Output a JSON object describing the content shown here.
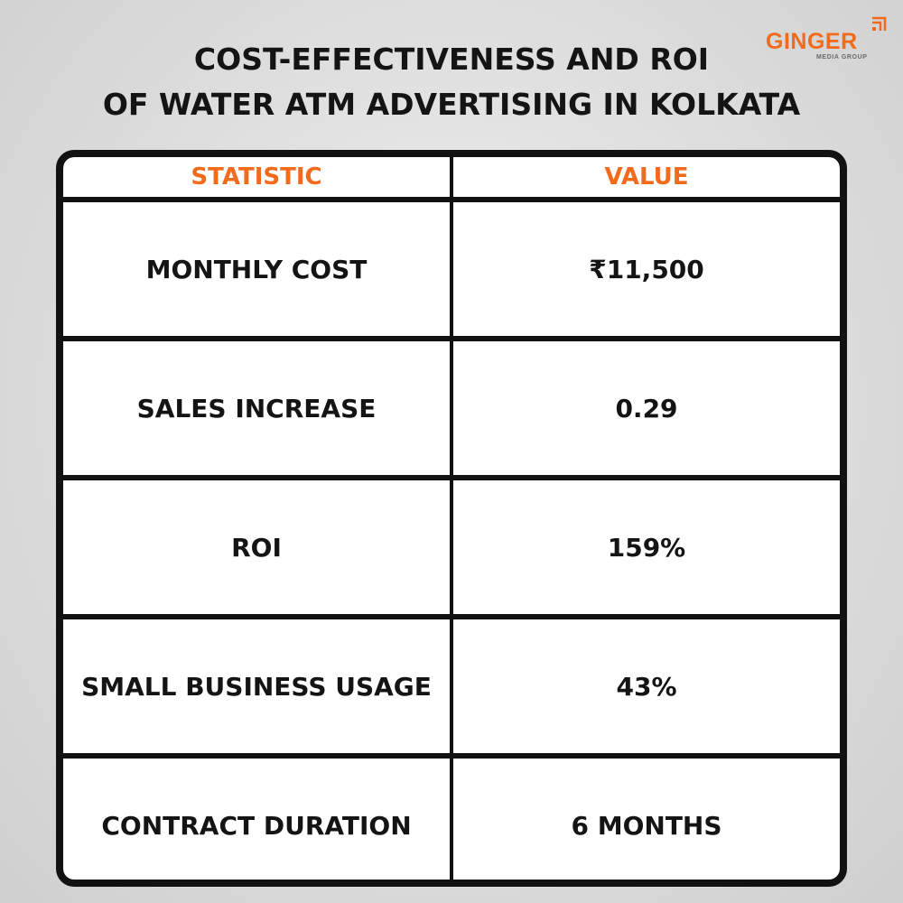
{
  "title": {
    "line1": "COST-EFFECTIVENESS AND ROI",
    "line2": "OF WATER ATM ADVERTISING IN KOLKATA"
  },
  "logo": {
    "name": "GINGER",
    "tagline": "MEDIA GROUP",
    "icon": "ginger-logo-icon"
  },
  "colors": {
    "accent": "#f26b1d",
    "text": "#141414",
    "border": "#121212"
  },
  "table": {
    "headers": [
      "STATISTIC",
      "VALUE"
    ],
    "rows": [
      {
        "statistic": "MONTHLY COST",
        "value": "₹11,500"
      },
      {
        "statistic": "SALES INCREASE",
        "value": "0.29"
      },
      {
        "statistic": "ROI",
        "value": "159%"
      },
      {
        "statistic": "SMALL BUSINESS USAGE",
        "value": "43%"
      },
      {
        "statistic": "CONTRACT DURATION",
        "value": "6 MONTHS"
      }
    ]
  }
}
